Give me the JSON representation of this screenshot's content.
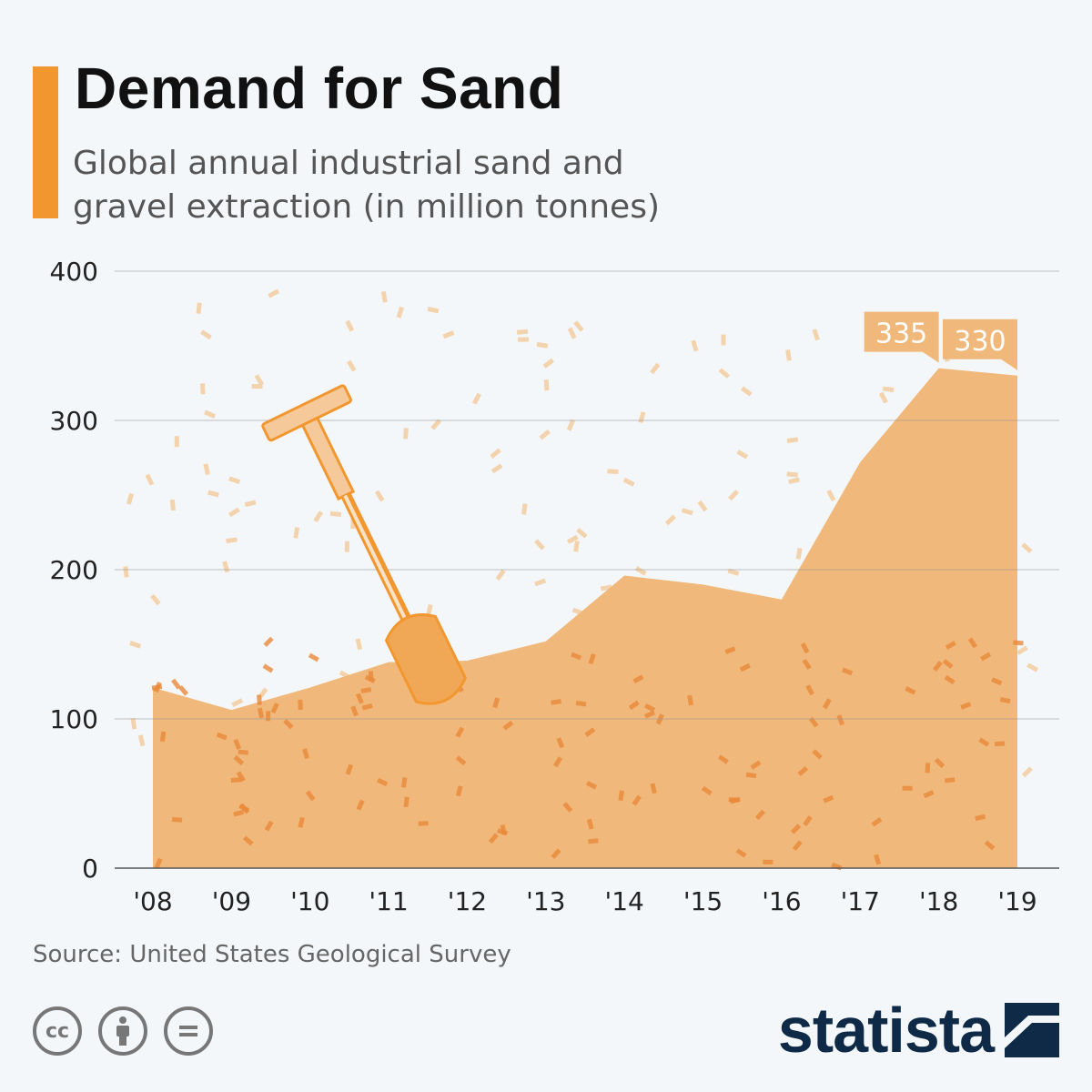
{
  "header": {
    "title": "Demand for Sand",
    "subtitle": "Global annual industrial sand and gravel extraction (in million tonnes)",
    "accent": "#f29730"
  },
  "chart_data": {
    "type": "area",
    "title": "Demand for Sand",
    "subtitle": "Global annual industrial sand and gravel extraction (in million tonnes)",
    "categories": [
      "'08",
      "'09",
      "'10",
      "'11",
      "'12",
      "'13",
      "'14",
      "'15",
      "'16",
      "'17",
      "'18",
      "'19"
    ],
    "values": [
      121,
      106,
      121,
      138,
      139,
      152,
      196,
      190,
      180,
      272,
      335,
      330
    ],
    "annotations": [
      {
        "category": "'18",
        "label": "335"
      },
      {
        "category": "'19",
        "label": "330"
      }
    ],
    "ylim": [
      0,
      400
    ],
    "yticks": [
      "0",
      "100",
      "200",
      "300",
      "400"
    ],
    "grid": true,
    "fill_color": "#f0b87a"
  },
  "footer": {
    "source": "Source: United States Geological Survey",
    "logo": "statista",
    "cc_icons": [
      "cc-icon",
      "attribution-icon",
      "no-derivatives-icon"
    ]
  }
}
